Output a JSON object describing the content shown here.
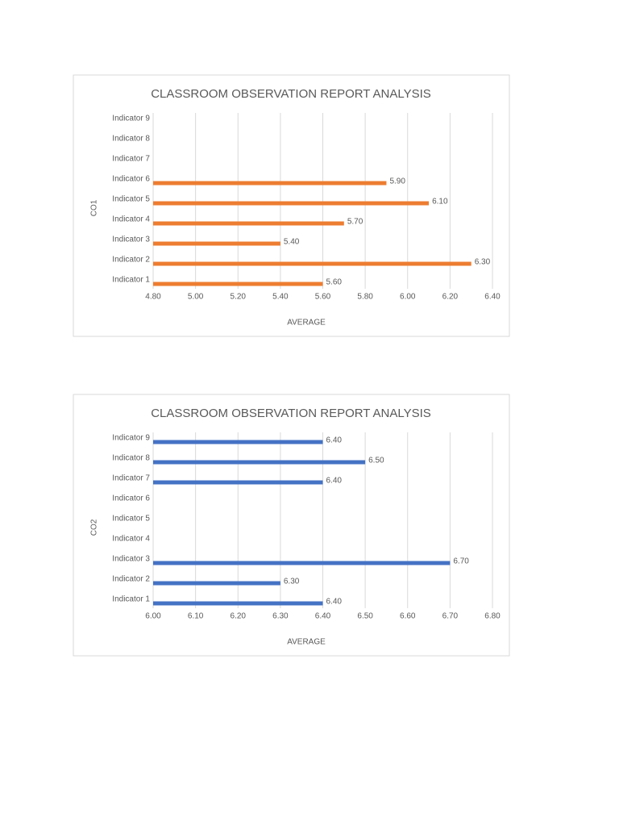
{
  "chart_data": [
    {
      "type": "bar",
      "title": "CLASSROOM OBSERVATION REPORT ANALYSIS",
      "xlabel": "AVERAGE",
      "ylabel": "CO1",
      "categories": [
        "Indicator 1",
        "Indicator 2",
        "Indicator 3",
        "Indicator 4",
        "Indicator 5",
        "Indicator 6",
        "Indicator 7",
        "Indicator 8",
        "Indicator 9"
      ],
      "values": [
        5.6,
        6.3,
        5.4,
        5.7,
        6.1,
        5.9,
        null,
        null,
        null
      ],
      "value_labels": [
        "5.60",
        "6.30",
        "5.40",
        "5.70",
        "6.10",
        "5.90",
        null,
        null,
        null
      ],
      "color": "#ed7d31",
      "xlim": [
        4.8,
        6.4
      ],
      "xticks": [
        {
          "value": 4.8,
          "label": "4.80"
        },
        {
          "value": 5.0,
          "label": "5.00"
        },
        {
          "value": 5.2,
          "label": "5.20"
        },
        {
          "value": 5.4,
          "label": "5.40"
        },
        {
          "value": 5.6,
          "label": "5.60"
        },
        {
          "value": 5.8,
          "label": "5.80"
        },
        {
          "value": 6.0,
          "label": "6.00"
        },
        {
          "value": 6.2,
          "label": "6.20"
        },
        {
          "value": 6.4,
          "label": "6.40"
        }
      ],
      "grid": true
    },
    {
      "type": "bar",
      "title": "CLASSROOM OBSERVATION REPORT ANALYSIS",
      "xlabel": "AVERAGE",
      "ylabel": "CO2",
      "categories": [
        "Indicator 1",
        "Indicator 2",
        "Indicator 3",
        "Indicator 4",
        "Indicator 5",
        "Indicator 6",
        "Indicator 7",
        "Indicator 8",
        "Indicator 9"
      ],
      "values": [
        6.4,
        6.3,
        6.7,
        null,
        null,
        null,
        6.4,
        6.5,
        6.4
      ],
      "value_labels": [
        "6.40",
        "6.30",
        "6.70",
        null,
        null,
        null,
        "6.40",
        "6.50",
        "6.40"
      ],
      "color": "#4472c4",
      "xlim": [
        6.0,
        6.8
      ],
      "xticks": [
        {
          "value": 6.0,
          "label": "6.00"
        },
        {
          "value": 6.1,
          "label": "6.10"
        },
        {
          "value": 6.2,
          "label": "6.20"
        },
        {
          "value": 6.3,
          "label": "6.30"
        },
        {
          "value": 6.4,
          "label": "6.40"
        },
        {
          "value": 6.5,
          "label": "6.50"
        },
        {
          "value": 6.6,
          "label": "6.60"
        },
        {
          "value": 6.7,
          "label": "6.70"
        },
        {
          "value": 6.8,
          "label": "6.80"
        }
      ],
      "grid": true
    }
  ]
}
